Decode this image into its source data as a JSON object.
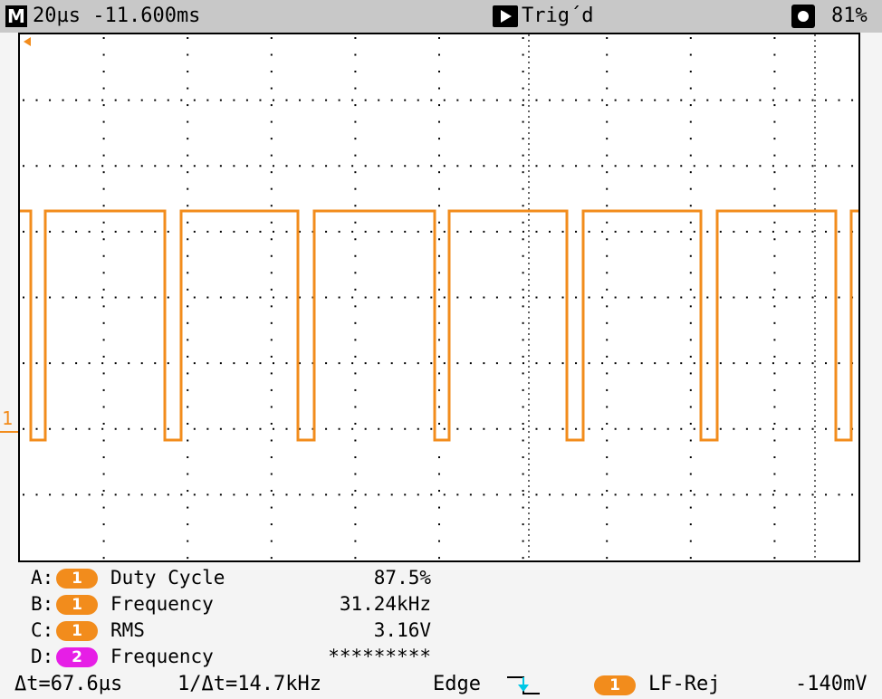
{
  "top_bar": {
    "mode_label": "M",
    "timebase": "20µs -11.600ms",
    "trigger_status": "Trig´d",
    "battery": "81%"
  },
  "screen": {
    "channel_marker": "1",
    "trace_color": "#f28c1c"
  },
  "measurements": [
    {
      "letter": "A:",
      "channel": "1",
      "channel_color": "#f28c1c",
      "name": "Duty Cycle",
      "value": "87.5%"
    },
    {
      "letter": "B:",
      "channel": "1",
      "channel_color": "#f28c1c",
      "name": "Frequency",
      "value": "31.24kHz"
    },
    {
      "letter": "C:",
      "channel": "1",
      "channel_color": "#f28c1c",
      "name": "RMS",
      "value": "3.16V"
    },
    {
      "letter": "D:",
      "channel": "2",
      "channel_color": "#e61ee6",
      "name": "Frequency",
      "value": "*********"
    }
  ],
  "bottom_bar": {
    "delta_t": "Δt=67.6µs",
    "inv_delta_t": "1/Δt=14.7kHz",
    "trigger_type": "Edge",
    "trigger_channel": "1",
    "trigger_channel_color": "#f28c1c",
    "coupling": "LF-Rej",
    "trigger_level": "-140mV"
  },
  "colors": {
    "ch1": "#f28c1c",
    "ch2": "#e61ee6",
    "trigger_edge": "#00c8e6"
  }
}
